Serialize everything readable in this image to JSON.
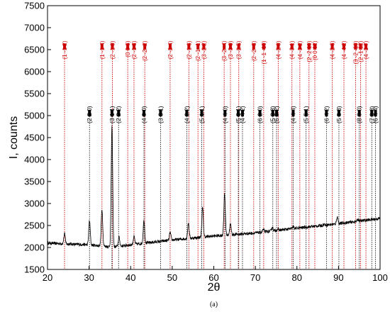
{
  "caption": "(a)",
  "chart_data": {
    "type": "line",
    "title": "",
    "xlabel": "2θ",
    "ylabel": "I, counts",
    "xlim": [
      20,
      100
    ],
    "ylim": [
      1500,
      7500
    ],
    "xticks": [
      20,
      30,
      40,
      50,
      60,
      70,
      80,
      90,
      100
    ],
    "yticks": [
      1500,
      2000,
      2500,
      3000,
      3500,
      4000,
      4500,
      5000,
      5500,
      6000,
      6500,
      7000,
      7500
    ],
    "xtick_labels": [
      "20",
      "30",
      "40",
      "50",
      "60",
      "70",
      "80",
      "90",
      "100"
    ],
    "ytick_labels": [
      "1500",
      "2000",
      "2500",
      "3000",
      "3500",
      "4000",
      "4500",
      "5000",
      "5500",
      "6000",
      "6500",
      "7000",
      "7500"
    ],
    "grid": false,
    "colors": {
      "pattern": "#000000",
      "red_reflections": "#cc0000",
      "black_reflections": "#000000"
    },
    "baseline": [
      [
        20,
        2100
      ],
      [
        30,
        2060
      ],
      [
        36,
        2010
      ],
      [
        40,
        2060
      ],
      [
        50,
        2170
      ],
      [
        60,
        2260
      ],
      [
        70,
        2330
      ],
      [
        80,
        2440
      ],
      [
        90,
        2540
      ],
      [
        100,
        2660
      ]
    ],
    "peaks": [
      {
        "x": 24.1,
        "y": 2310
      },
      {
        "x": 30.1,
        "y": 2610
      },
      {
        "x": 33.1,
        "y": 2870
      },
      {
        "x": 35.5,
        "y": 4730
      },
      {
        "x": 37.2,
        "y": 2230
      },
      {
        "x": 40.8,
        "y": 2250
      },
      {
        "x": 43.2,
        "y": 2620
      },
      {
        "x": 49.5,
        "y": 2340
      },
      {
        "x": 53.9,
        "y": 2550
      },
      {
        "x": 57.3,
        "y": 2900
      },
      {
        "x": 62.6,
        "y": 3200
      },
      {
        "x": 64.0,
        "y": 2530
      },
      {
        "x": 71.9,
        "y": 2410
      },
      {
        "x": 74.1,
        "y": 2460
      },
      {
        "x": 75.4,
        "y": 2420
      },
      {
        "x": 79.1,
        "y": 2470
      },
      {
        "x": 86.5,
        "y": 2530
      },
      {
        "x": 89.7,
        "y": 2700
      },
      {
        "x": 94.7,
        "y": 2640
      }
    ],
    "red_reflections": [
      {
        "x": 24.1,
        "label": "(1 -1 2)"
      },
      {
        "x": 33.1,
        "label": "(1 -1 4)"
      },
      {
        "x": 35.6,
        "label": "(2 -1 0)"
      },
      {
        "x": 39.3,
        "label": "(0 0 6)"
      },
      {
        "x": 40.8,
        "label": "(2 -1 3)"
      },
      {
        "x": 43.4,
        "label": "(2 -2 -2)"
      },
      {
        "x": 49.5,
        "label": "(2 -2 4)"
      },
      {
        "x": 54.0,
        "label": "(2 -1 6)"
      },
      {
        "x": 56.2,
        "label": "(2 -1 -1)"
      },
      {
        "x": 57.6,
        "label": "(3 -2 2)"
      },
      {
        "x": 62.5,
        "label": "(3 -2 -4)"
      },
      {
        "x": 64.0,
        "label": "(3 -3 0)"
      },
      {
        "x": 66.0,
        "label": "(3 -2 5)"
      },
      {
        "x": 69.6,
        "label": "(2 -2 -8)"
      },
      {
        "x": 72.0,
        "label": "(1 -1 -10)"
      },
      {
        "x": 75.5,
        "label": "(4 -2 0)"
      },
      {
        "x": 78.8,
        "label": "(4 -3 1)"
      },
      {
        "x": 80.7,
        "label": "(4 -3 2)"
      },
      {
        "x": 82.9,
        "label": "(2 -2 10)"
      },
      {
        "x": 84.3,
        "label": "(0 0 12)"
      },
      {
        "x": 88.5,
        "label": "(4 -2 6)"
      },
      {
        "x": 91.3,
        "label": "(4 -4 2)"
      },
      {
        "x": 94.1,
        "label": "(3 -2 -10)"
      },
      {
        "x": 95.3,
        "label": "(2 -1 12)"
      },
      {
        "x": 96.6,
        "label": "(4 -3 7)"
      }
    ],
    "black_reflections": [
      {
        "x": 30.1,
        "label": "(2 2 0)"
      },
      {
        "x": 35.5,
        "label": "(3 1 1)"
      },
      {
        "x": 37.1,
        "label": "(2 2 2)"
      },
      {
        "x": 43.2,
        "label": "(4 0 0)"
      },
      {
        "x": 47.2,
        "label": "(3 3 1)"
      },
      {
        "x": 53.5,
        "label": "(4 2 2)"
      },
      {
        "x": 57.1,
        "label": "(5 1 1)"
      },
      {
        "x": 62.7,
        "label": "(4 4 0)"
      },
      {
        "x": 65.9,
        "label": "(5 3 1)"
      },
      {
        "x": 66.9,
        "label": "(4 4 2)"
      },
      {
        "x": 71.1,
        "label": "(6 2 0)"
      },
      {
        "x": 74.2,
        "label": "(5 3 3)"
      },
      {
        "x": 75.1,
        "label": "(6 2 2)"
      },
      {
        "x": 79.1,
        "label": "(4 4 4)"
      },
      {
        "x": 82.2,
        "label": "(5 5 1)"
      },
      {
        "x": 87.1,
        "label": "(6 4 2)"
      },
      {
        "x": 90.1,
        "label": "(5 5 3)"
      },
      {
        "x": 95.0,
        "label": "(8 0 0)"
      },
      {
        "x": 98.0,
        "label": "(7 3 3)"
      },
      {
        "x": 98.9,
        "label": "(6 4 4)"
      }
    ]
  }
}
